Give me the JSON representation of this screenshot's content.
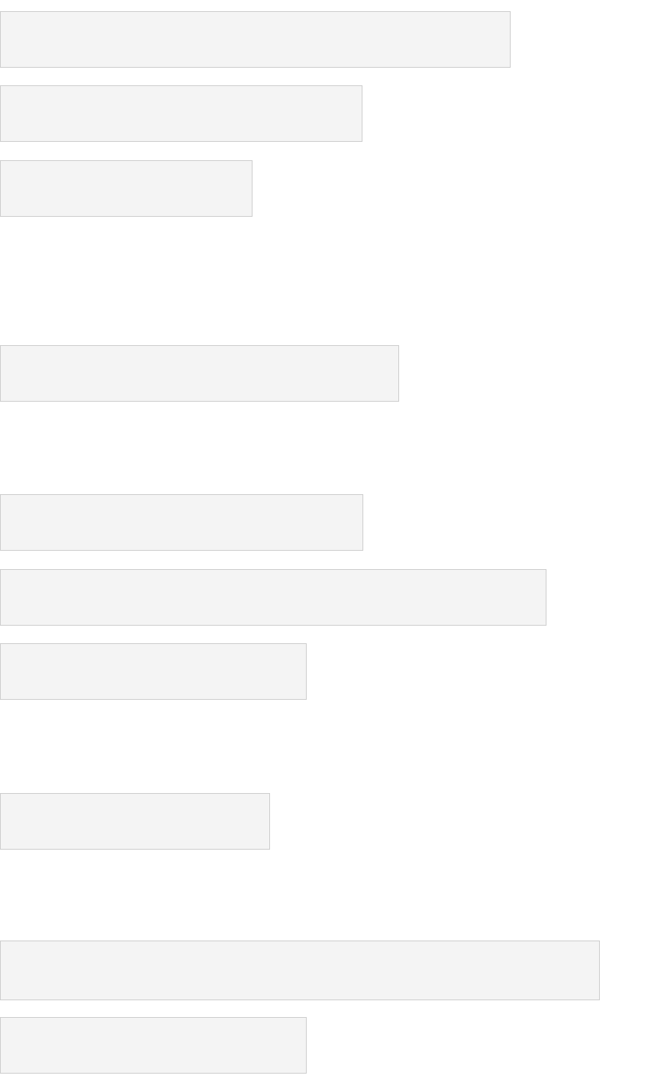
{
  "colors": {
    "background": "#ffffff",
    "placeholder_fill": "#f4f4f4",
    "placeholder_border": "#cfcfcf"
  },
  "placeholders": [
    {
      "text": ""
    },
    {
      "text": ""
    },
    {
      "text": ""
    },
    {
      "text": ""
    },
    {
      "text": ""
    },
    {
      "text": ""
    },
    {
      "text": ""
    },
    {
      "text": ""
    },
    {
      "text": ""
    },
    {
      "text": ""
    }
  ]
}
